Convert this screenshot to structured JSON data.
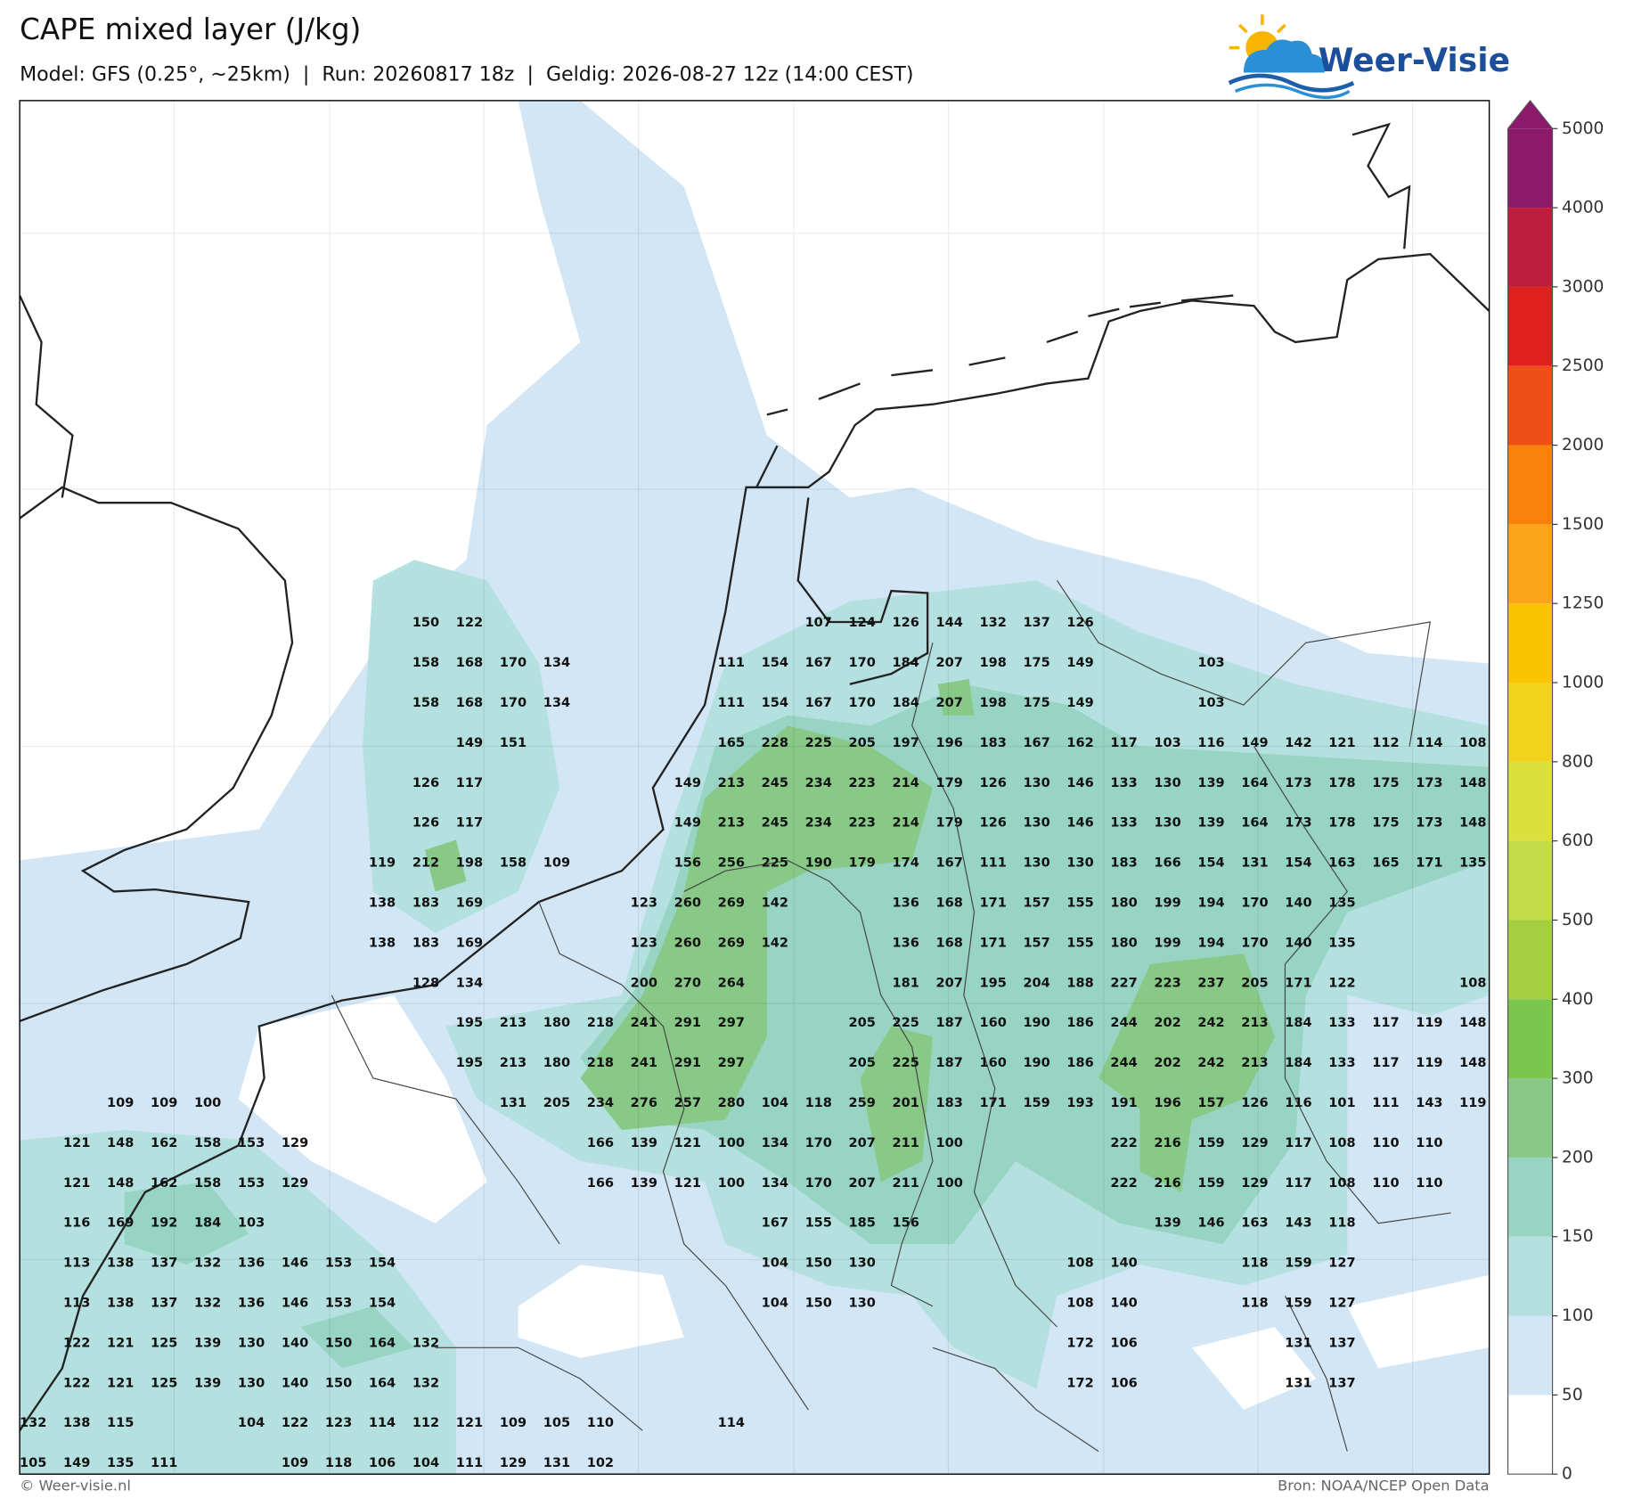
{
  "header": {
    "title": "CAPE mixed layer (J/kg)",
    "subtitle": "Model: GFS (0.25°, ~25km)  |  Run: 20260817 18z  |  Geldig: 2026-08-27 12z (14:00 CEST)",
    "logo": "Weer-Visie"
  },
  "map": {
    "rows": [
      [
        null,
        null,
        null,
        null,
        null,
        null,
        null,
        null,
        null,
        150,
        122,
        null,
        null,
        null,
        null,
        null,
        null,
        null,
        107,
        124,
        126,
        144,
        132,
        137,
        126,
        null,
        null,
        null,
        null,
        null,
        null,
        null,
        null,
        null
      ],
      [
        null,
        null,
        null,
        null,
        null,
        null,
        null,
        null,
        null,
        158,
        168,
        170,
        134,
        null,
        null,
        null,
        111,
        154,
        167,
        170,
        184,
        207,
        198,
        175,
        149,
        null,
        null,
        103,
        null,
        null,
        null,
        null,
        null,
        null
      ],
      [
        null,
        null,
        null,
        null,
        null,
        null,
        null,
        null,
        null,
        158,
        168,
        170,
        134,
        null,
        null,
        null,
        111,
        154,
        167,
        170,
        184,
        207,
        198,
        175,
        149,
        null,
        null,
        103,
        null,
        null,
        null,
        null,
        null,
        null
      ],
      [
        null,
        null,
        null,
        null,
        null,
        null,
        null,
        null,
        null,
        null,
        149,
        151,
        null,
        null,
        null,
        null,
        165,
        228,
        225,
        205,
        197,
        196,
        183,
        167,
        162,
        117,
        103,
        116,
        149,
        142,
        121,
        112,
        114,
        108
      ],
      [
        null,
        null,
        null,
        null,
        null,
        null,
        null,
        null,
        null,
        126,
        117,
        null,
        null,
        null,
        null,
        149,
        213,
        245,
        234,
        223,
        214,
        179,
        126,
        130,
        146,
        133,
        130,
        139,
        164,
        173,
        178,
        175,
        173,
        148
      ],
      [
        null,
        null,
        null,
        null,
        null,
        null,
        null,
        null,
        null,
        126,
        117,
        null,
        null,
        null,
        null,
        149,
        213,
        245,
        234,
        223,
        214,
        179,
        126,
        130,
        146,
        133,
        130,
        139,
        164,
        173,
        178,
        175,
        173,
        148
      ],
      [
        null,
        null,
        null,
        null,
        null,
        null,
        null,
        null,
        119,
        212,
        198,
        158,
        109,
        null,
        null,
        156,
        256,
        225,
        190,
        179,
        174,
        167,
        111,
        130,
        130,
        183,
        166,
        154,
        131,
        154,
        163,
        165,
        171,
        135
      ],
      [
        null,
        null,
        null,
        null,
        null,
        null,
        null,
        null,
        138,
        183,
        169,
        null,
        null,
        null,
        123,
        260,
        269,
        142,
        null,
        null,
        136,
        168,
        171,
        157,
        155,
        180,
        199,
        194,
        170,
        140,
        135,
        null,
        null,
        null
      ],
      [
        null,
        null,
        null,
        null,
        null,
        null,
        null,
        null,
        138,
        183,
        169,
        null,
        null,
        null,
        123,
        260,
        269,
        142,
        null,
        null,
        136,
        168,
        171,
        157,
        155,
        180,
        199,
        194,
        170,
        140,
        135,
        null,
        null,
        null
      ],
      [
        null,
        null,
        null,
        null,
        null,
        null,
        null,
        null,
        null,
        128,
        134,
        null,
        null,
        null,
        200,
        270,
        264,
        null,
        null,
        null,
        181,
        207,
        195,
        204,
        188,
        227,
        223,
        237,
        205,
        171,
        122,
        null,
        null,
        108
      ],
      [
        null,
        null,
        null,
        null,
        null,
        null,
        null,
        null,
        null,
        null,
        195,
        213,
        180,
        218,
        241,
        291,
        297,
        null,
        null,
        205,
        225,
        187,
        160,
        190,
        186,
        244,
        202,
        242,
        213,
        184,
        133,
        117,
        119,
        148
      ],
      [
        null,
        null,
        null,
        null,
        null,
        null,
        null,
        null,
        null,
        null,
        195,
        213,
        180,
        218,
        241,
        291,
        297,
        null,
        null,
        205,
        225,
        187,
        160,
        190,
        186,
        244,
        202,
        242,
        213,
        184,
        133,
        117,
        119,
        148
      ],
      [
        null,
        null,
        109,
        109,
        100,
        null,
        null,
        null,
        null,
        null,
        null,
        131,
        205,
        234,
        276,
        257,
        280,
        104,
        118,
        259,
        201,
        183,
        171,
        159,
        193,
        191,
        196,
        157,
        126,
        116,
        101,
        111,
        143,
        119
      ],
      [
        null,
        121,
        148,
        162,
        158,
        153,
        129,
        null,
        null,
        null,
        null,
        null,
        null,
        166,
        139,
        121,
        100,
        134,
        170,
        207,
        211,
        100,
        null,
        null,
        null,
        222,
        216,
        159,
        129,
        117,
        108,
        110,
        110,
        null
      ],
      [
        null,
        121,
        148,
        162,
        158,
        153,
        129,
        null,
        null,
        null,
        null,
        null,
        null,
        166,
        139,
        121,
        100,
        134,
        170,
        207,
        211,
        100,
        null,
        null,
        null,
        222,
        216,
        159,
        129,
        117,
        108,
        110,
        110,
        null
      ],
      [
        null,
        116,
        169,
        192,
        184,
        103,
        null,
        null,
        null,
        null,
        null,
        null,
        null,
        null,
        null,
        null,
        null,
        167,
        155,
        185,
        156,
        null,
        null,
        null,
        null,
        null,
        139,
        146,
        163,
        143,
        118,
        null,
        null,
        null
      ],
      [
        null,
        113,
        138,
        137,
        132,
        136,
        146,
        153,
        154,
        null,
        null,
        null,
        null,
        null,
        null,
        null,
        null,
        104,
        150,
        130,
        null,
        null,
        null,
        null,
        108,
        140,
        null,
        null,
        118,
        159,
        127,
        null,
        null,
        null
      ],
      [
        null,
        113,
        138,
        137,
        132,
        136,
        146,
        153,
        154,
        null,
        null,
        null,
        null,
        null,
        null,
        null,
        null,
        104,
        150,
        130,
        null,
        null,
        null,
        null,
        108,
        140,
        null,
        null,
        118,
        159,
        127,
        null,
        null,
        null
      ],
      [
        null,
        122,
        121,
        125,
        139,
        130,
        140,
        150,
        164,
        132,
        null,
        null,
        null,
        null,
        null,
        null,
        null,
        null,
        null,
        null,
        null,
        null,
        null,
        null,
        172,
        106,
        null,
        null,
        null,
        131,
        137,
        null,
        null,
        null
      ],
      [
        null,
        122,
        121,
        125,
        139,
        130,
        140,
        150,
        164,
        132,
        null,
        null,
        null,
        null,
        null,
        null,
        null,
        null,
        null,
        null,
        null,
        null,
        null,
        null,
        172,
        106,
        null,
        null,
        null,
        131,
        137,
        null,
        null,
        null
      ],
      [
        132,
        138,
        115,
        null,
        null,
        104,
        122,
        123,
        114,
        112,
        121,
        109,
        105,
        110,
        null,
        null,
        114,
        null,
        null,
        null,
        null,
        null,
        null,
        null,
        null,
        null,
        null,
        null,
        null,
        null,
        null,
        null,
        null,
        null
      ],
      [
        105,
        149,
        135,
        111,
        null,
        null,
        109,
        118,
        106,
        104,
        111,
        129,
        131,
        102,
        null,
        null,
        null,
        null,
        null,
        null,
        null,
        null,
        null,
        null,
        null,
        null,
        null,
        null,
        null,
        null,
        null,
        null,
        null,
        null
      ]
    ]
  },
  "colorbar": {
    "ticks": [
      0,
      50,
      100,
      150,
      200,
      300,
      400,
      500,
      600,
      800,
      1000,
      1250,
      1500,
      2000,
      2500,
      3000,
      4000,
      5000
    ],
    "colors": [
      "#ffffff",
      "#d2e6f6",
      "#b4e0df",
      "#98d4c4",
      "#88c987",
      "#7ac64f",
      "#a3cf41",
      "#c4dc4a",
      "#dcdf3c",
      "#f1d31a",
      "#fbc400",
      "#fca51b",
      "#f8820c",
      "#ef4f16",
      "#e0201f",
      "#bb1d3a",
      "#8b1a6a"
    ],
    "extend_color": "#8b1a6a"
  },
  "footer": {
    "copyright": "© Weer-visie.nl",
    "source": "Bron: NOAA/NCEP Open Data"
  }
}
